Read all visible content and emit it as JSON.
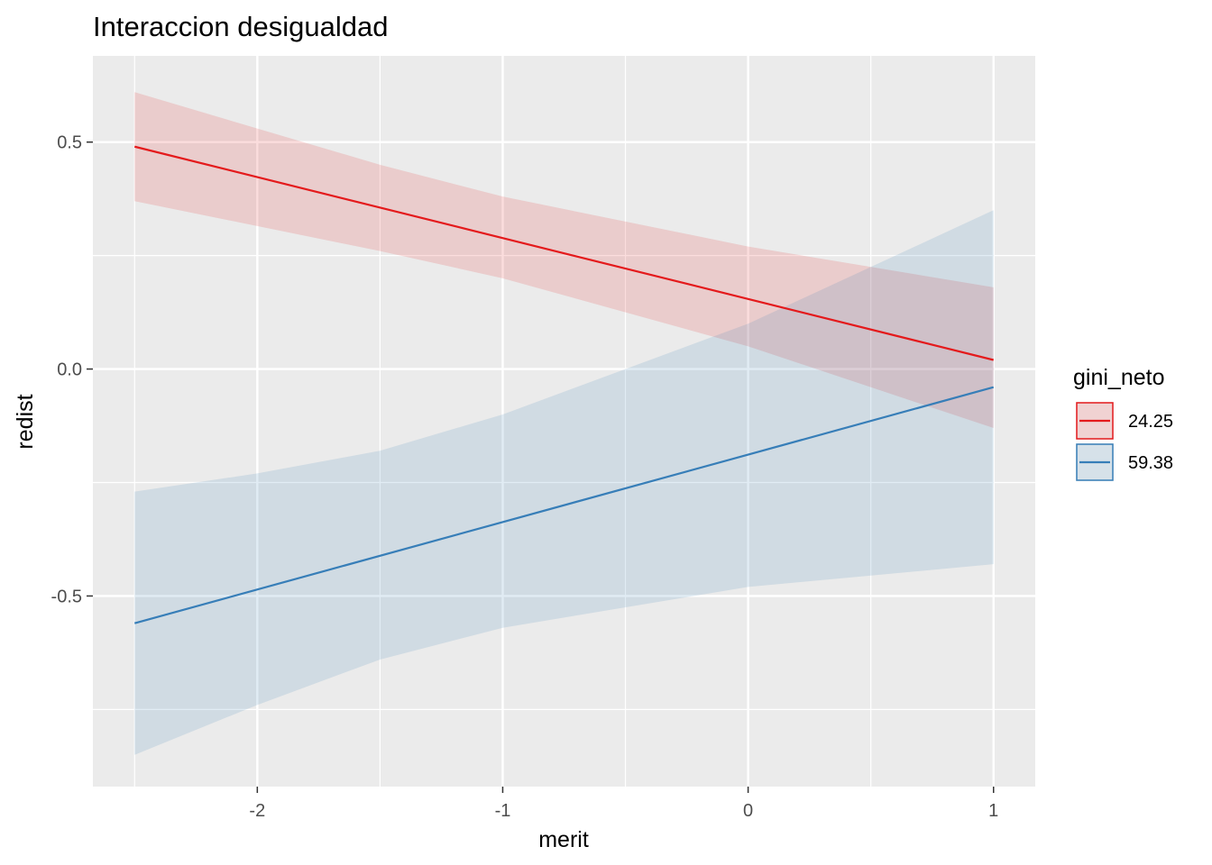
{
  "chart_data": {
    "type": "line",
    "title": "Interaccion desigualdad",
    "xlabel": "merit",
    "ylabel": "redist",
    "xlim": [
      -2.67,
      1.17
    ],
    "ylim": [
      -0.92,
      0.69
    ],
    "x_ticks": [
      -2,
      -1,
      0,
      1
    ],
    "x_tick_labels": [
      "-2",
      "-1",
      "0",
      "1"
    ],
    "y_ticks": [
      -0.5,
      0.0,
      0.5
    ],
    "y_tick_labels": [
      "-0.5",
      "0.0",
      "0.5"
    ],
    "grid": true,
    "legend": {
      "title": "gini_neto",
      "position": "right"
    },
    "series": [
      {
        "name": "24.25",
        "color": "#e41a1c",
        "x": [
          -2.5,
          1.0
        ],
        "y": [
          0.49,
          0.02
        ],
        "band_x": [
          -2.5,
          -1.5,
          -1.0,
          0.0,
          1.0
        ],
        "band_lower": [
          0.37,
          0.26,
          0.2,
          0.05,
          -0.13
        ],
        "band_upper": [
          0.61,
          0.45,
          0.38,
          0.27,
          0.18
        ]
      },
      {
        "name": "59.38",
        "color": "#377eb8",
        "x": [
          -2.5,
          1.0
        ],
        "y": [
          -0.56,
          -0.04
        ],
        "band_x": [
          -2.5,
          -2.0,
          -1.5,
          -1.0,
          0.0,
          1.0
        ],
        "band_lower": [
          -0.85,
          -0.74,
          -0.64,
          -0.57,
          -0.48,
          -0.43
        ],
        "band_upper": [
          -0.27,
          -0.23,
          -0.18,
          -0.1,
          0.1,
          0.35
        ]
      }
    ]
  }
}
